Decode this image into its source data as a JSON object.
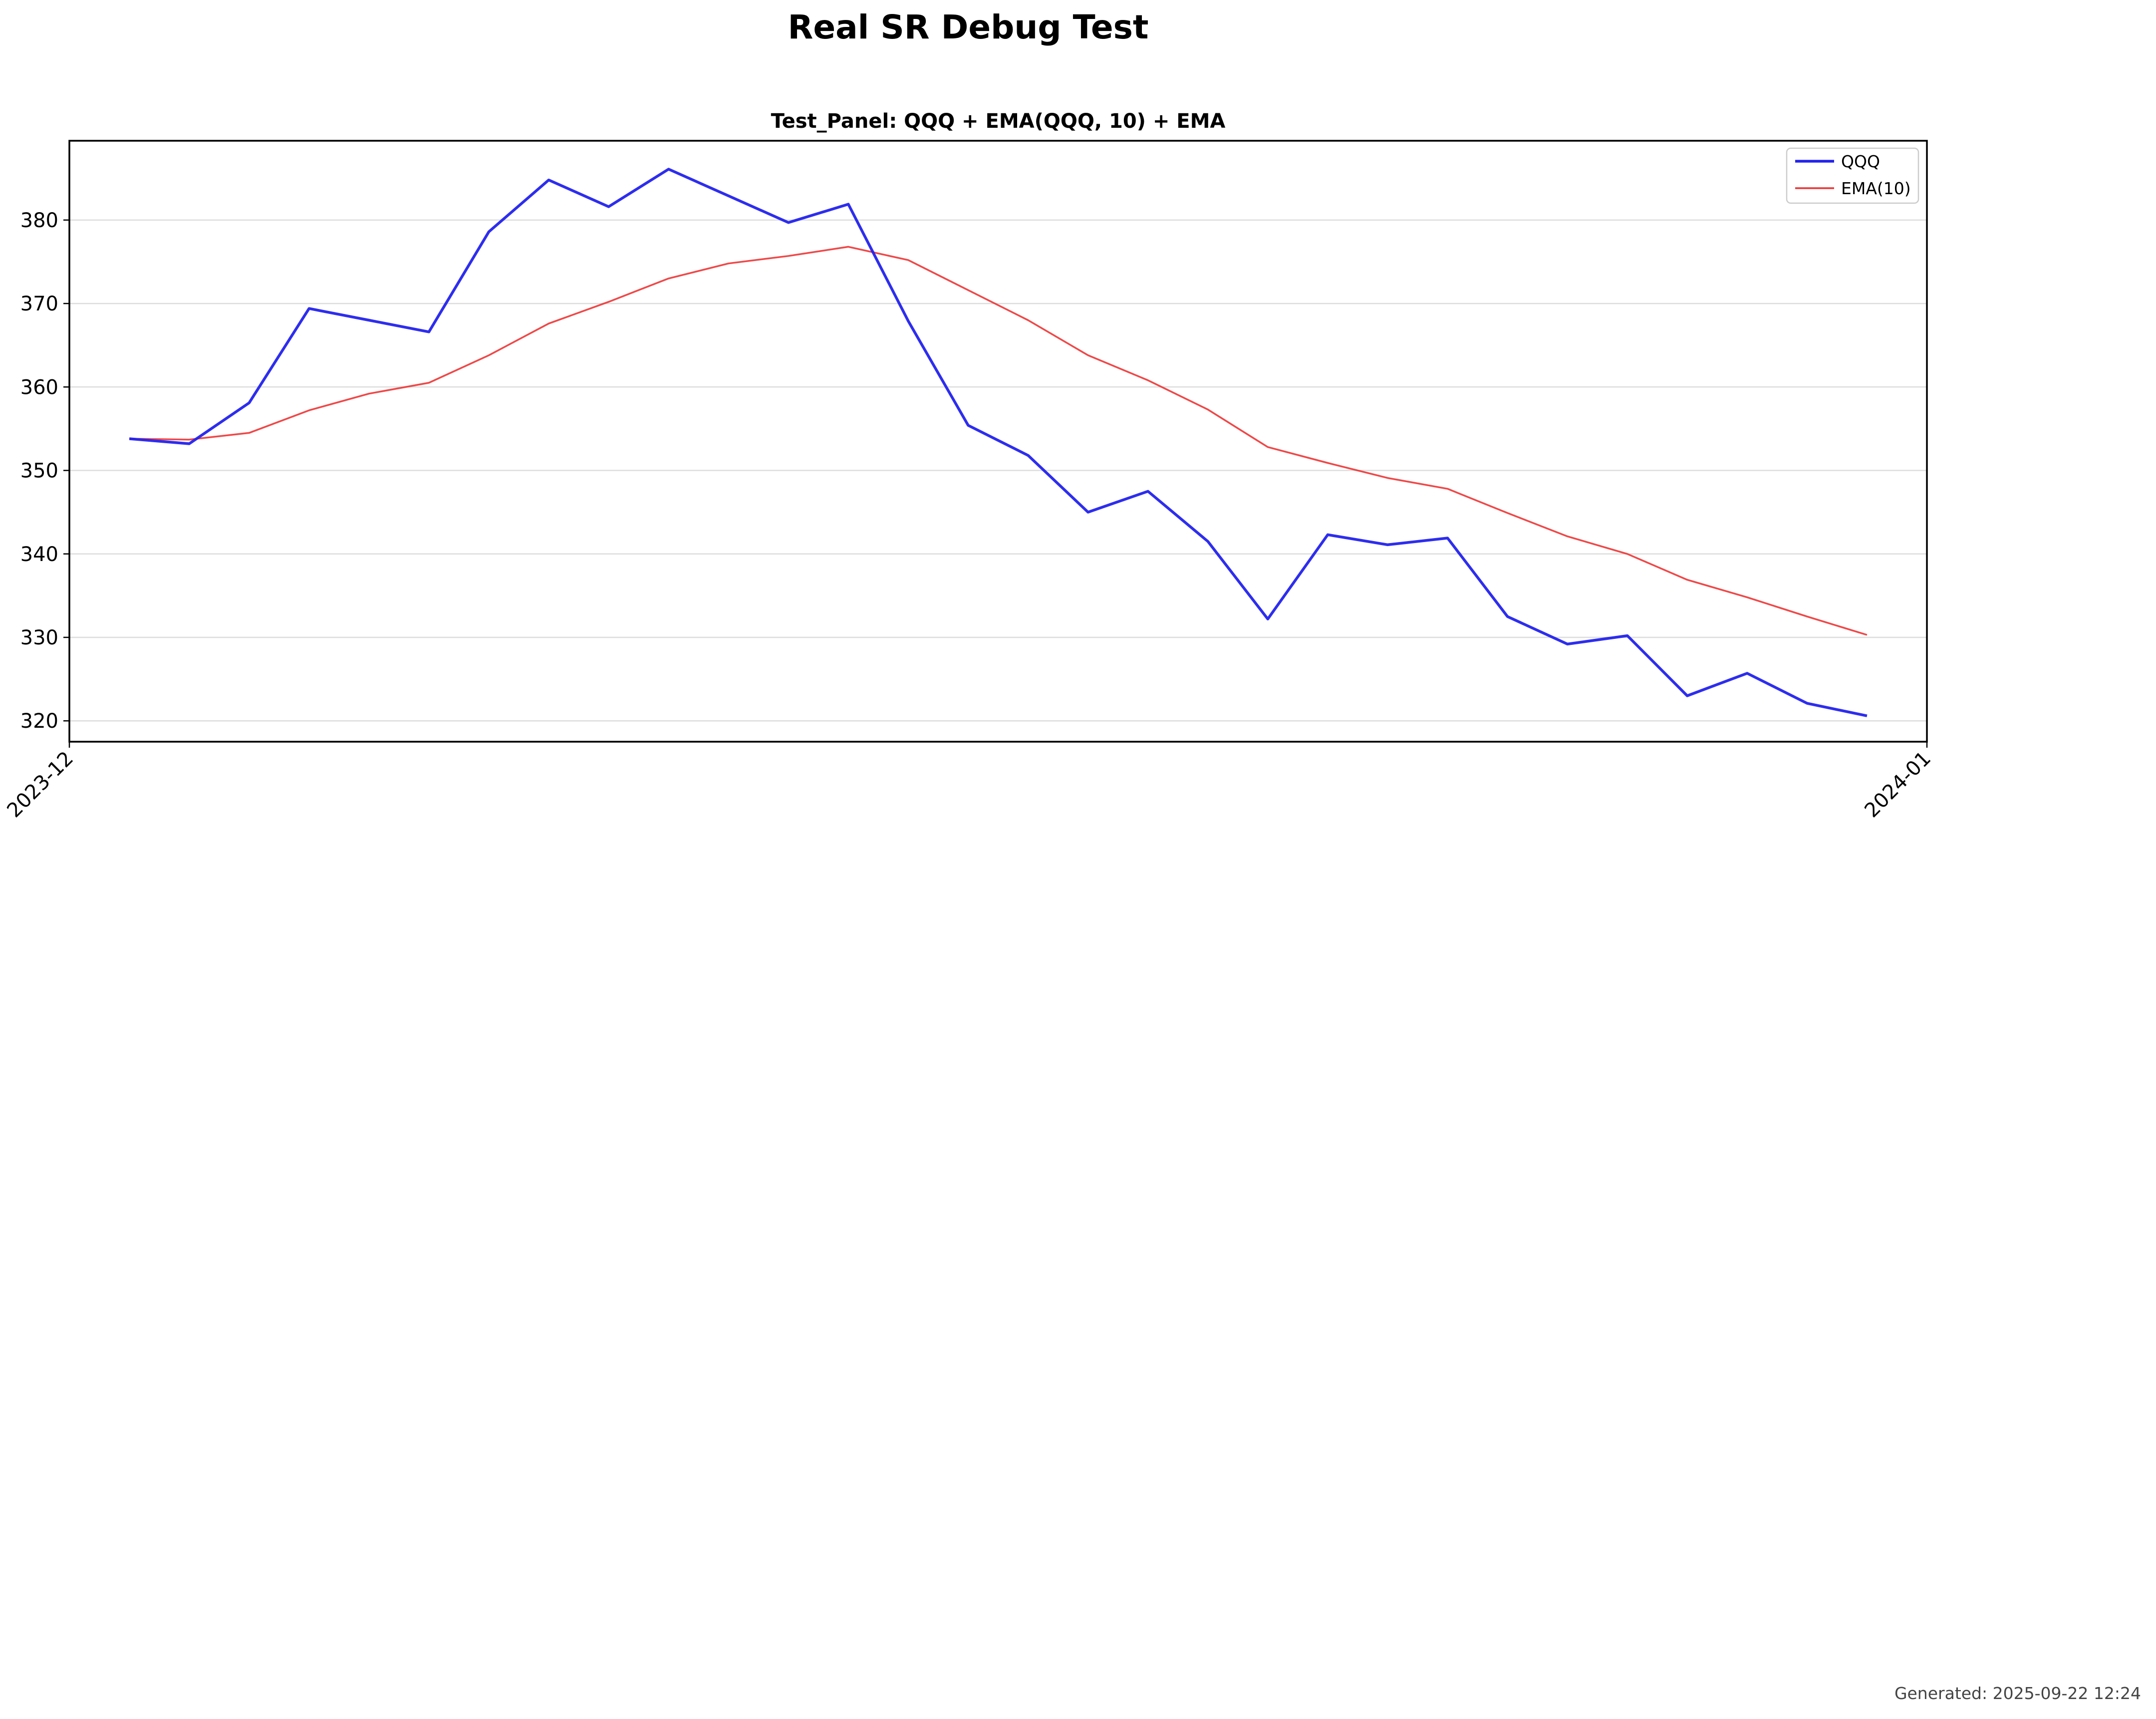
{
  "chart_data": {
    "type": "line",
    "title": "Real SR Debug Test",
    "subtitle": "Test_Panel: QQQ + EMA(QQQ, 10) + EMA",
    "xlabel": "",
    "ylabel": "",
    "x_tick_labels": [
      "2023-12",
      "2024-01"
    ],
    "x_domain": [
      "2023-12-01",
      "2024-01-01"
    ],
    "x": [
      "2023-12-02",
      "2023-12-03",
      "2023-12-04",
      "2023-12-05",
      "2023-12-06",
      "2023-12-07",
      "2023-12-08",
      "2023-12-09",
      "2023-12-10",
      "2023-12-11",
      "2023-12-12",
      "2023-12-13",
      "2023-12-14",
      "2023-12-15",
      "2023-12-16",
      "2023-12-17",
      "2023-12-18",
      "2023-12-19",
      "2023-12-20",
      "2023-12-21",
      "2023-12-22",
      "2023-12-23",
      "2023-12-24",
      "2023-12-25",
      "2023-12-26",
      "2023-12-27",
      "2023-12-28",
      "2023-12-29",
      "2023-12-30",
      "2023-12-31"
    ],
    "ylim": [
      317.5,
      389.5
    ],
    "y_ticks": [
      320,
      330,
      340,
      350,
      360,
      370,
      380
    ],
    "grid": "horizontal",
    "legend_position": "top-right",
    "series": [
      {
        "name": "QQQ",
        "color": "#2222ee",
        "values": [
          353.8,
          353.2,
          358.1,
          369.4,
          368.0,
          366.6,
          378.6,
          384.8,
          381.6,
          386.1,
          382.9,
          379.7,
          381.9,
          367.9,
          355.4,
          351.8,
          345.0,
          347.5,
          341.5,
          332.2,
          342.3,
          341.1,
          341.9,
          332.5,
          329.2,
          330.2,
          323.0,
          325.7,
          322.1,
          320.6
        ]
      },
      {
        "name": "EMA(10)",
        "color": "#ee3333",
        "values": [
          353.8,
          353.7,
          354.5,
          357.2,
          359.2,
          360.5,
          363.8,
          367.6,
          370.2,
          373.0,
          374.8,
          375.7,
          376.8,
          375.2,
          371.6,
          368.0,
          363.8,
          360.8,
          357.3,
          352.8,
          350.9,
          349.1,
          347.8,
          344.9,
          342.1,
          340.0,
          336.9,
          334.8,
          332.5,
          330.3
        ]
      }
    ]
  },
  "footer": {
    "generated": "Generated: 2025-09-22 12:24"
  }
}
